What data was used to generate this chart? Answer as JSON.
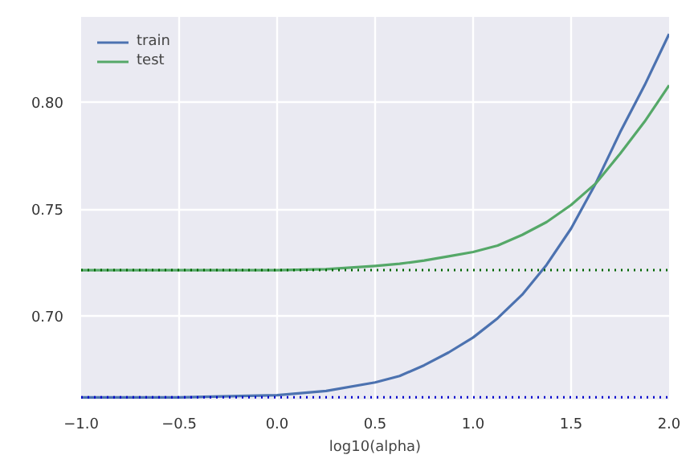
{
  "chart_data": {
    "type": "line",
    "xlabel": "log10(alpha)",
    "xlim": [
      -1.0,
      2.0
    ],
    "xticks": [
      {
        "value": -1.0,
        "label": "−1.0"
      },
      {
        "value": -0.5,
        "label": "−0.5"
      },
      {
        "value": 0.0,
        "label": "0.0"
      },
      {
        "value": 0.5,
        "label": "0.5"
      },
      {
        "value": 1.0,
        "label": "1.0"
      },
      {
        "value": 1.5,
        "label": "1.5"
      },
      {
        "value": 2.0,
        "label": "2.0"
      }
    ],
    "ylim": [
      0.661,
      0.84
    ],
    "yticks": [
      {
        "value": 0.7,
        "label": "0.70"
      },
      {
        "value": 0.75,
        "label": "0.75"
      },
      {
        "value": 0.8,
        "label": "0.80"
      }
    ],
    "x": [
      -1.0,
      -0.5,
      0.0,
      0.25,
      0.5,
      0.625,
      0.75,
      0.875,
      1.0,
      1.125,
      1.25,
      1.375,
      1.5,
      1.625,
      1.75,
      1.875,
      2.0
    ],
    "series": [
      {
        "name": "train",
        "color": "#4c72b0",
        "values": [
          0.662,
          0.662,
          0.663,
          0.665,
          0.669,
          0.672,
          0.677,
          0.683,
          0.69,
          0.699,
          0.71,
          0.724,
          0.741,
          0.762,
          0.786,
          0.808,
          0.832
        ]
      },
      {
        "name": "test",
        "color": "#55a868",
        "values": [
          0.7215,
          0.7215,
          0.7215,
          0.722,
          0.7235,
          0.7245,
          0.726,
          0.728,
          0.73,
          0.733,
          0.738,
          0.744,
          0.752,
          0.762,
          0.776,
          0.791,
          0.808
        ]
      }
    ],
    "ref_lines": [
      {
        "axis": "y",
        "value": 0.662,
        "color": "#0000cc",
        "line_style": "dotted"
      },
      {
        "axis": "y",
        "value": 0.7215,
        "color": "#006600",
        "line_style": "dotted"
      }
    ],
    "grid": true,
    "legend": "top left",
    "line_style": "solid",
    "marker": "none"
  }
}
